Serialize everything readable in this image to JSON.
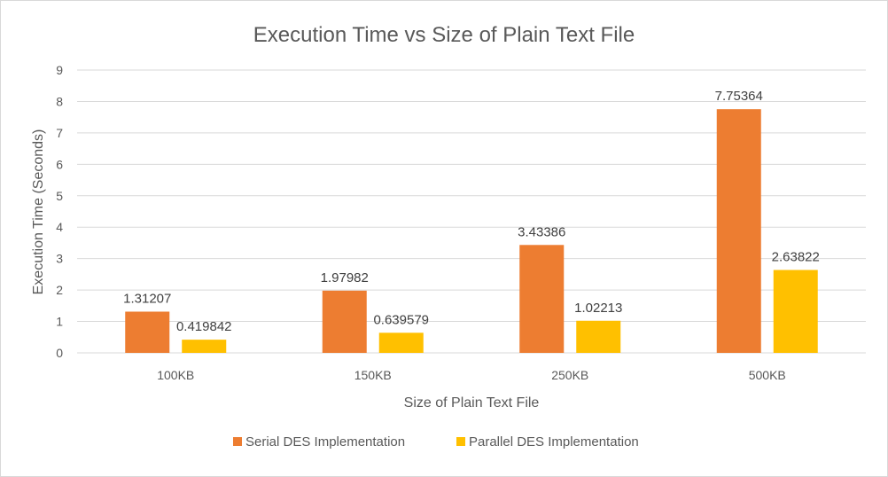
{
  "chart_data": {
    "type": "bar",
    "title": "Execution Time vs Size of Plain Text File",
    "xlabel": "Size of Plain Text File",
    "ylabel": "Execution Time (Seconds)",
    "categories": [
      "100KB",
      "150KB",
      "250KB",
      "500KB"
    ],
    "series": [
      {
        "name": "Serial DES Implementation",
        "values": [
          1.31207,
          1.97982,
          3.43386,
          7.75364
        ],
        "labels": [
          "1.31207",
          "1.97982",
          "3.43386",
          "7.75364"
        ],
        "color": "#ED7D31"
      },
      {
        "name": "Parallel DES Implementation",
        "values": [
          0.419842,
          0.639579,
          1.02213,
          2.63822
        ],
        "labels": [
          "0.419842",
          "0.639579",
          "1.02213",
          "2.63822"
        ],
        "color": "#FFC000"
      }
    ],
    "ylim": [
      0,
      9
    ],
    "yticks": [
      "0",
      "1",
      "2",
      "3",
      "4",
      "5",
      "6",
      "7",
      "8",
      "9"
    ],
    "grid": true,
    "legend_position": "bottom"
  }
}
